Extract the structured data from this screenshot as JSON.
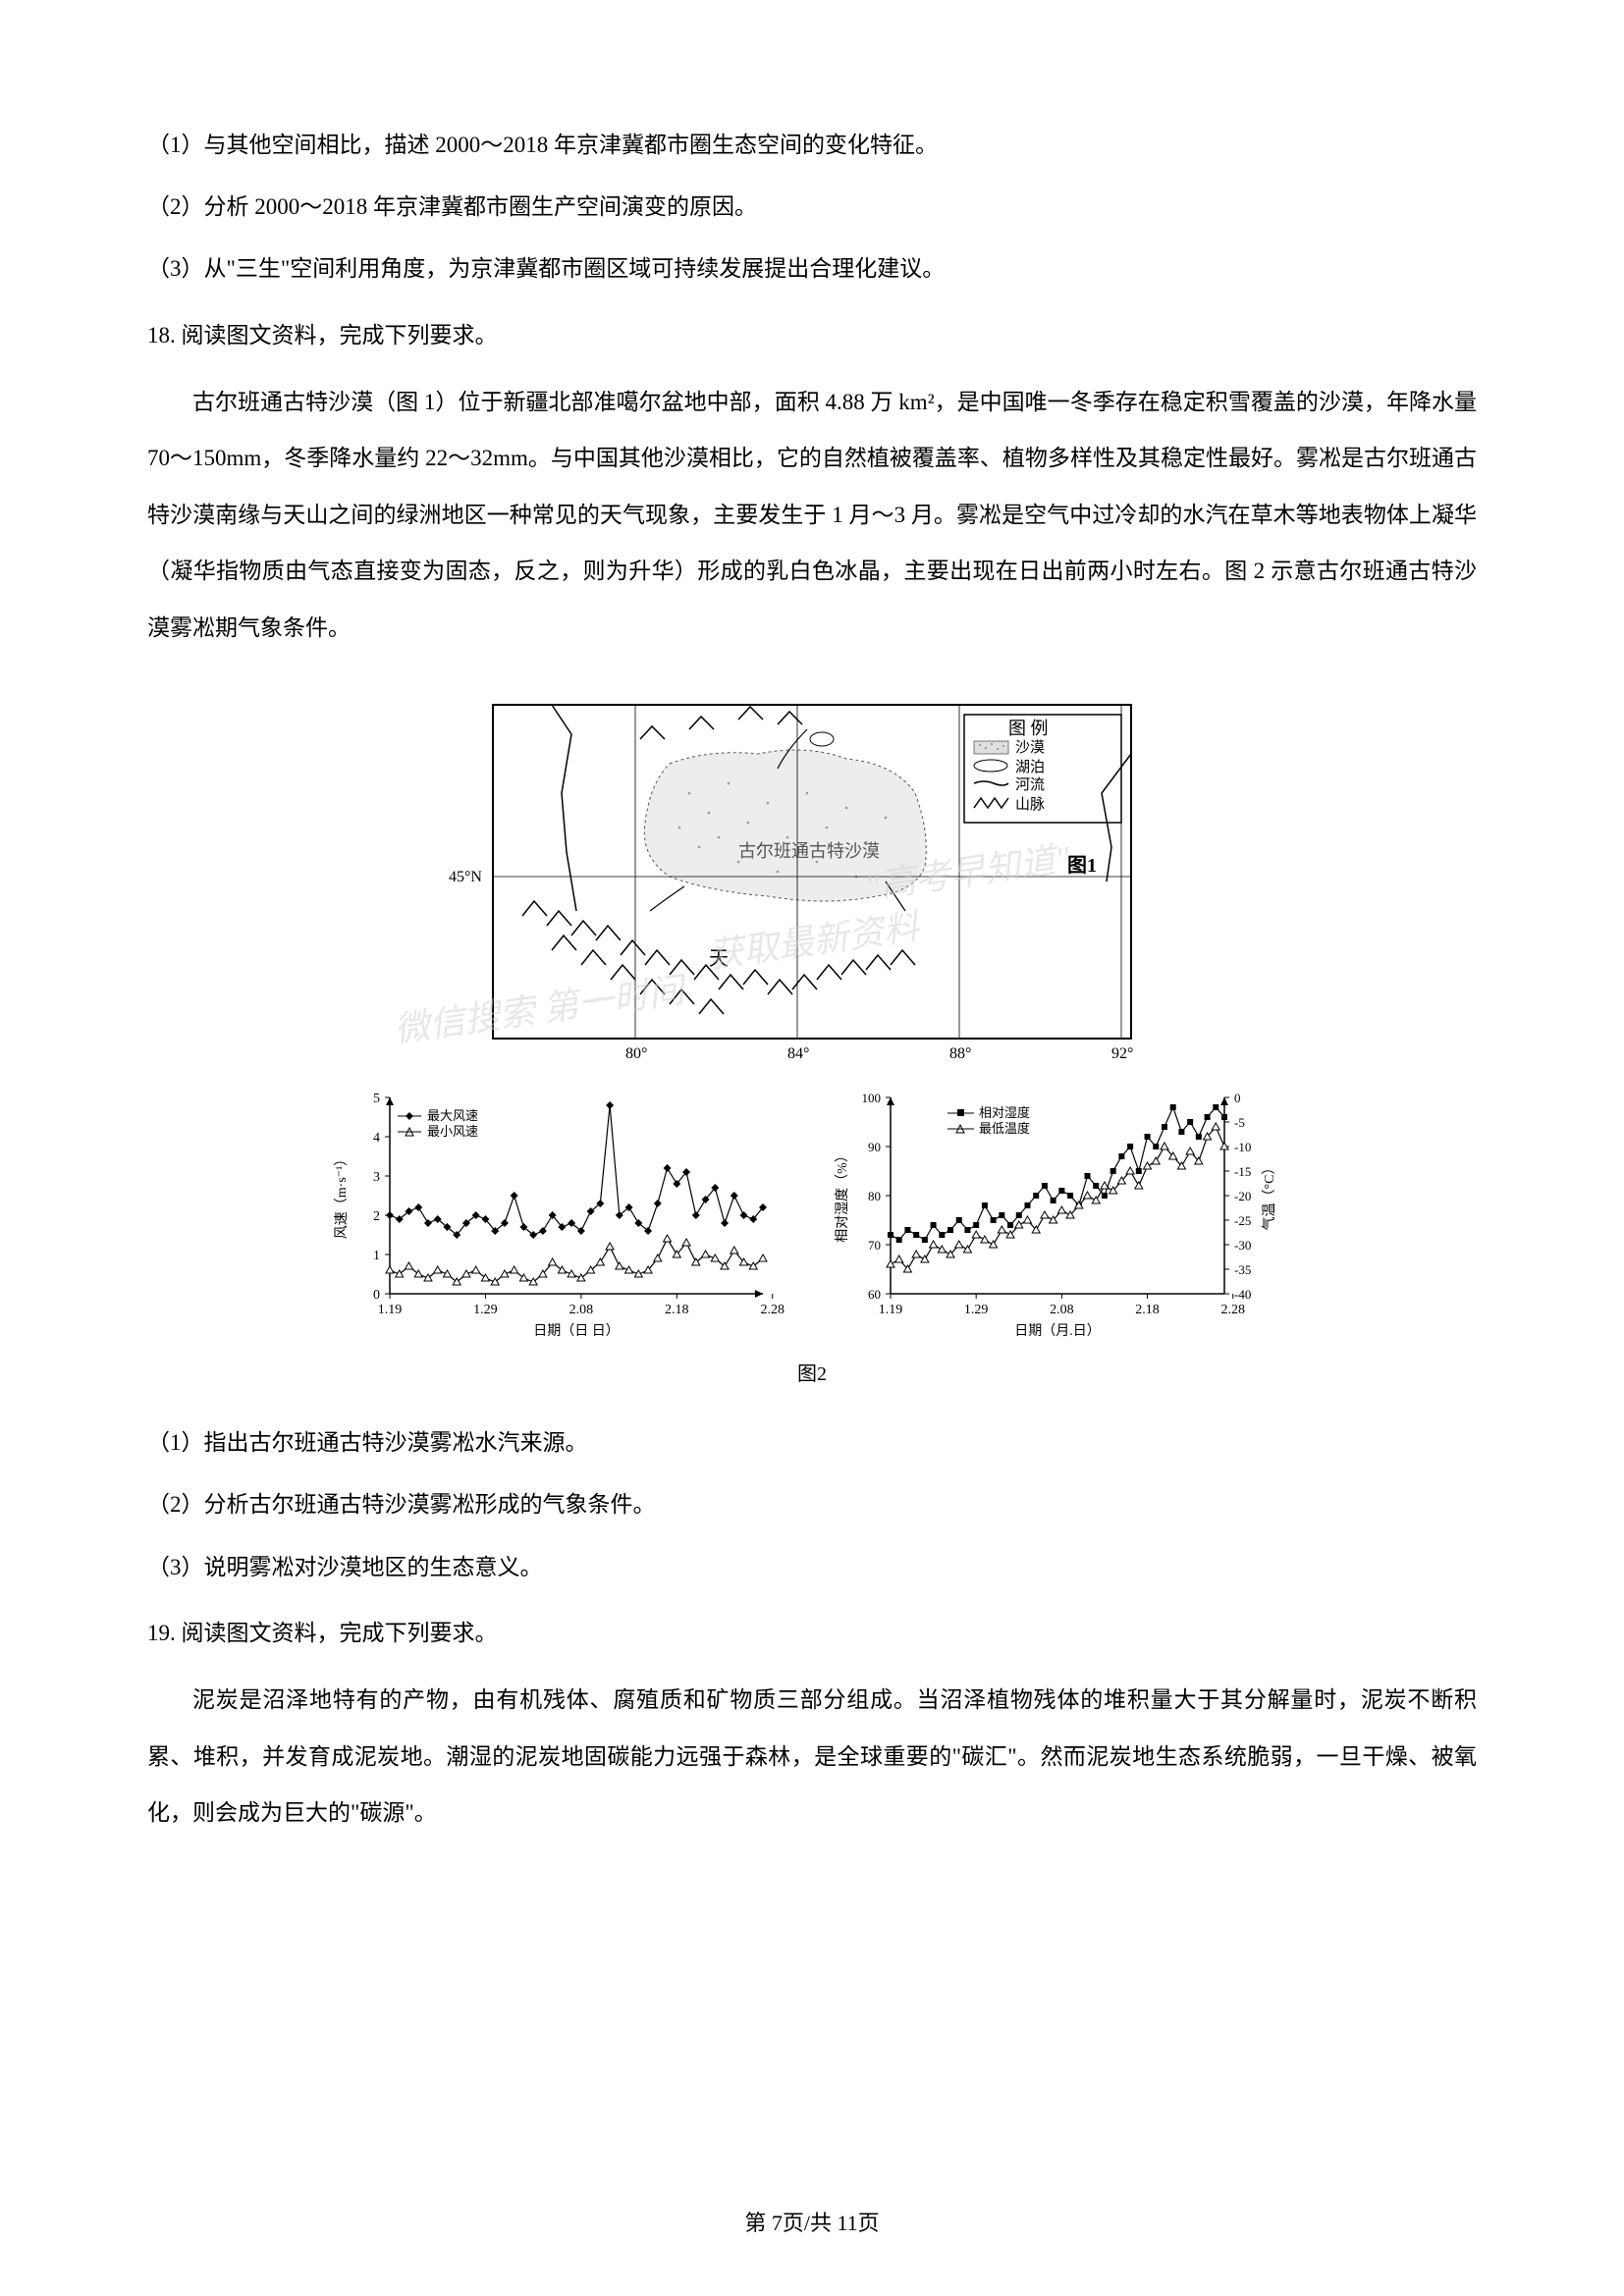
{
  "questions": {
    "q1": "（1）与其他空间相比，描述 2000～2018 年京津冀都市圈生态空间的变化特征。",
    "q2": "（2）分析 2000～2018 年京津冀都市圈生产空间演变的原因。",
    "q3": "（3）从\"三生\"空间利用角度，为京津冀都市圈区域可持续发展提出合理化建议。",
    "q18": "18. 阅读图文资料，完成下列要求。",
    "q18_sub1": "（1）指出古尔班通古特沙漠雾凇水汽来源。",
    "q18_sub2": "（2）分析古尔班通古特沙漠雾凇形成的气象条件。",
    "q18_sub3": "（3）说明雾凇对沙漠地区的生态意义。",
    "q19": "19. 阅读图文资料，完成下列要求。"
  },
  "paragraph18": "古尔班通古特沙漠（图 1）位于新疆北部准噶尔盆地中部，面积 4.88 万 km²，是中国唯一冬季存在稳定积雪覆盖的沙漠，年降水量 70～150mm，冬季降水量约 22～32mm。与中国其他沙漠相比，它的自然植被覆盖率、植物多样性及其稳定性最好。雾凇是古尔班通古特沙漠南缘与天山之间的绿洲地区一种常见的天气现象，主要发生于 1 月～3 月。雾凇是空气中过冷却的水汽在草木等地表物体上凝华（凝华指物质由气态直接变为固态，反之，则为升华）形成的乳白色冰晶，主要出现在日出前两小时左右。图 2 示意古尔班通古特沙漠雾凇期气象条件。",
  "paragraph19": "泥炭是沼泽地特有的产物，由有机残体、腐殖质和矿物质三部分组成。当沼泽植物残体的堆积量大于其分解量时，泥炭不断积累、堆积，并发育成泥炭地。潮湿的泥炭地固碳能力远强于森林，是全球重要的\"碳汇\"。然而泥炭地生态系统脆弱，一旦干燥、被氧化，则会成为巨大的\"碳源\"。",
  "map": {
    "title": "图1",
    "desert_name": "古尔班通古特沙漠",
    "mountain_name": "天",
    "legend_title": "图  例",
    "legend_items": [
      "沙漠",
      "湖泊",
      "河流",
      "山脉"
    ],
    "latitude_label": "45°N",
    "longitude_labels": [
      "80°",
      "84°",
      "88°",
      "92°"
    ],
    "colors": {
      "border": "#000000",
      "desert_fill": "#e8e8e8",
      "background": "#ffffff",
      "text": "#000000"
    }
  },
  "chart1": {
    "type": "line",
    "ylabel": "风速（m·s⁻¹）",
    "xlabel": "日期（日 日）",
    "series1_name": "最大风速",
    "series2_name": "最小风速",
    "x_ticks": [
      "1.19",
      "1.29",
      "2.08",
      "2.18",
      "2.28"
    ],
    "y_ticks": [
      0,
      1,
      2,
      3,
      4,
      5
    ],
    "ylim": [
      0,
      5
    ],
    "max_wind_data": [
      [
        0,
        2.0
      ],
      [
        1,
        1.9
      ],
      [
        2,
        2.1
      ],
      [
        3,
        2.2
      ],
      [
        4,
        1.8
      ],
      [
        5,
        1.9
      ],
      [
        6,
        1.7
      ],
      [
        7,
        1.5
      ],
      [
        8,
        1.8
      ],
      [
        9,
        2.0
      ],
      [
        10,
        1.9
      ],
      [
        11,
        1.6
      ],
      [
        12,
        1.8
      ],
      [
        13,
        2.5
      ],
      [
        14,
        1.7
      ],
      [
        15,
        1.5
      ],
      [
        16,
        1.6
      ],
      [
        17,
        2.0
      ],
      [
        18,
        1.7
      ],
      [
        19,
        1.8
      ],
      [
        20,
        1.6
      ],
      [
        21,
        2.1
      ],
      [
        22,
        2.3
      ],
      [
        23,
        4.8
      ],
      [
        24,
        2.0
      ],
      [
        25,
        2.2
      ],
      [
        26,
        1.8
      ],
      [
        27,
        1.6
      ],
      [
        28,
        2.3
      ],
      [
        29,
        3.2
      ],
      [
        30,
        2.8
      ],
      [
        31,
        3.1
      ],
      [
        32,
        2.0
      ],
      [
        33,
        2.4
      ],
      [
        34,
        2.7
      ],
      [
        35,
        1.8
      ],
      [
        36,
        2.5
      ],
      [
        37,
        2.0
      ],
      [
        38,
        1.9
      ],
      [
        39,
        2.2
      ]
    ],
    "min_wind_data": [
      [
        0,
        0.6
      ],
      [
        1,
        0.5
      ],
      [
        2,
        0.7
      ],
      [
        3,
        0.5
      ],
      [
        4,
        0.4
      ],
      [
        5,
        0.6
      ],
      [
        6,
        0.5
      ],
      [
        7,
        0.3
      ],
      [
        8,
        0.5
      ],
      [
        9,
        0.6
      ],
      [
        10,
        0.4
      ],
      [
        11,
        0.3
      ],
      [
        12,
        0.5
      ],
      [
        13,
        0.6
      ],
      [
        14,
        0.4
      ],
      [
        15,
        0.3
      ],
      [
        16,
        0.5
      ],
      [
        17,
        0.8
      ],
      [
        18,
        0.6
      ],
      [
        19,
        0.5
      ],
      [
        20,
        0.4
      ],
      [
        21,
        0.6
      ],
      [
        22,
        0.8
      ],
      [
        23,
        1.2
      ],
      [
        24,
        0.7
      ],
      [
        25,
        0.6
      ],
      [
        26,
        0.5
      ],
      [
        27,
        0.6
      ],
      [
        28,
        0.9
      ],
      [
        29,
        1.4
      ],
      [
        30,
        1.0
      ],
      [
        31,
        1.3
      ],
      [
        32,
        0.8
      ],
      [
        33,
        1.0
      ],
      [
        34,
        0.9
      ],
      [
        35,
        0.7
      ],
      [
        36,
        1.1
      ],
      [
        37,
        0.8
      ],
      [
        38,
        0.7
      ],
      [
        39,
        0.9
      ]
    ],
    "colors": {
      "line": "#000000",
      "axis": "#000000",
      "background": "#ffffff"
    }
  },
  "chart2": {
    "type": "line",
    "ylabel_left": "相对湿度（%）",
    "ylabel_right": "气温（°C）",
    "xlabel": "日期（月.日）",
    "series1_name": "相对湿度",
    "series2_name": "最低温度",
    "x_ticks": [
      "1.19",
      "1.29",
      "2.08",
      "2.18",
      "2.28"
    ],
    "y_left_ticks": [
      60,
      70,
      80,
      90,
      100
    ],
    "y_right_ticks": [
      0,
      -5,
      -10,
      -15,
      -20,
      -25,
      -30,
      -35,
      -40
    ],
    "ylim_left": [
      60,
      100
    ],
    "ylim_right": [
      -40,
      0
    ],
    "humidity_data": [
      [
        0,
        72
      ],
      [
        1,
        71
      ],
      [
        2,
        73
      ],
      [
        3,
        72
      ],
      [
        4,
        71
      ],
      [
        5,
        74
      ],
      [
        6,
        72
      ],
      [
        7,
        73
      ],
      [
        8,
        75
      ],
      [
        9,
        73
      ],
      [
        10,
        74
      ],
      [
        11,
        78
      ],
      [
        12,
        75
      ],
      [
        13,
        76
      ],
      [
        14,
        74
      ],
      [
        15,
        76
      ],
      [
        16,
        78
      ],
      [
        17,
        80
      ],
      [
        18,
        82
      ],
      [
        19,
        79
      ],
      [
        20,
        81
      ],
      [
        21,
        80
      ],
      [
        22,
        78
      ],
      [
        23,
        84
      ],
      [
        24,
        82
      ],
      [
        25,
        80
      ],
      [
        26,
        85
      ],
      [
        27,
        88
      ],
      [
        28,
        90
      ],
      [
        29,
        85
      ],
      [
        30,
        92
      ],
      [
        31,
        90
      ],
      [
        32,
        94
      ],
      [
        33,
        98
      ],
      [
        34,
        93
      ],
      [
        35,
        95
      ],
      [
        36,
        92
      ],
      [
        37,
        96
      ],
      [
        38,
        98
      ],
      [
        39,
        96
      ]
    ],
    "temp_data": [
      [
        0,
        -34
      ],
      [
        1,
        -33
      ],
      [
        2,
        -35
      ],
      [
        3,
        -32
      ],
      [
        4,
        -33
      ],
      [
        5,
        -30
      ],
      [
        6,
        -31
      ],
      [
        7,
        -32
      ],
      [
        8,
        -30
      ],
      [
        9,
        -31
      ],
      [
        10,
        -28
      ],
      [
        11,
        -29
      ],
      [
        12,
        -30
      ],
      [
        13,
        -27
      ],
      [
        14,
        -28
      ],
      [
        15,
        -26
      ],
      [
        16,
        -25
      ],
      [
        17,
        -27
      ],
      [
        18,
        -24
      ],
      [
        19,
        -25
      ],
      [
        20,
        -23
      ],
      [
        21,
        -24
      ],
      [
        22,
        -22
      ],
      [
        23,
        -20
      ],
      [
        24,
        -21
      ],
      [
        25,
        -18
      ],
      [
        26,
        -19
      ],
      [
        27,
        -17
      ],
      [
        28,
        -15
      ],
      [
        29,
        -18
      ],
      [
        30,
        -14
      ],
      [
        31,
        -13
      ],
      [
        32,
        -10
      ],
      [
        33,
        -12
      ],
      [
        34,
        -14
      ],
      [
        35,
        -11
      ],
      [
        36,
        -13
      ],
      [
        37,
        -8
      ],
      [
        38,
        -6
      ],
      [
        39,
        -10
      ]
    ],
    "colors": {
      "line": "#000000",
      "axis": "#000000",
      "background": "#ffffff"
    }
  },
  "figure_label": "图2",
  "page_number": "第 7页/共 11页",
  "watermarks": {
    "w1": "\"高考早知道\"",
    "w2": "获取最新资料",
    "w3": "微信搜索 第一时间"
  }
}
